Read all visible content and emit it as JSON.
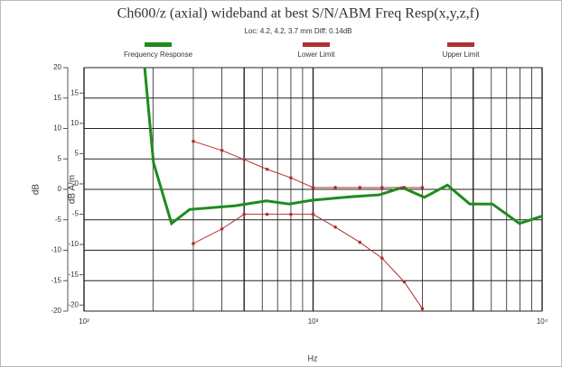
{
  "chart_data": {
    "type": "line",
    "title": "Ch600/z (axial) wideband at best S/N/ABM Freq Resp(x,y,z,f)",
    "subtitle": "Loc: 4.2, 4.2, 3.7 mm Diff: 0.14dB",
    "xlabel": "Hz",
    "ylabel": "dB",
    "y2label": "dB A/m",
    "xscale": "log",
    "xlim": [
      100,
      10000
    ],
    "xticks": [
      {
        "value": 100,
        "label": "10²"
      },
      {
        "value": 1000,
        "label": "10³"
      },
      {
        "value": 10000,
        "label": "10⁴"
      }
    ],
    "ylim": [
      -20,
      20
    ],
    "yticks": [
      20,
      15,
      10,
      5,
      0,
      -5,
      -10,
      -15,
      -20
    ],
    "y2lim": [
      -21,
      19.2
    ],
    "y2ticks": [
      15,
      10,
      5,
      0,
      -5,
      -10,
      -15,
      -20
    ],
    "grid": true,
    "legend": "top",
    "series": [
      {
        "name": "Frequency Response",
        "color": "#1e8c1e",
        "x": [
          184,
          201,
          241,
          289,
          455,
          626,
          786,
          985,
          1480,
          1950,
          2450,
          3060,
          3860,
          4830,
          6060,
          7960,
          10000
        ],
        "values": [
          20,
          4.4,
          -5.6,
          -3.3,
          -2.7,
          -1.9,
          -2.4,
          -1.8,
          -1.2,
          -0.9,
          0.3,
          -1.3,
          0.7,
          -2.4,
          -2.4,
          -5.6,
          -4.4
        ]
      },
      {
        "name": "Lower Limit",
        "color": "#b03030",
        "markers": true,
        "x": [
          300,
          400,
          500,
          630,
          800,
          1000,
          1250,
          1600,
          2000,
          2500,
          3000
        ],
        "values": [
          -8.9,
          -6.5,
          -4.1,
          -4.1,
          -4.1,
          -4.1,
          -6.2,
          -8.7,
          -11.3,
          -15.2,
          -19.6
        ]
      },
      {
        "name": "Upper Limit",
        "color": "#b03030",
        "markers": true,
        "x": [
          300,
          400,
          500,
          630,
          800,
          1000,
          1250,
          1600,
          2000,
          2500,
          3000
        ],
        "values": [
          7.9,
          6.4,
          4.9,
          3.3,
          1.9,
          0.3,
          0.3,
          0.3,
          0.3,
          0.3,
          0.3
        ]
      }
    ]
  }
}
